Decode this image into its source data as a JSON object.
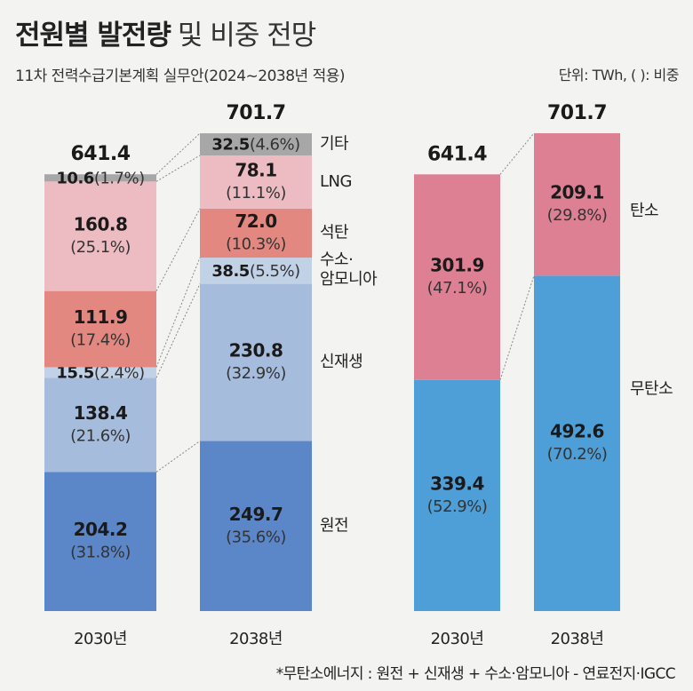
{
  "title": {
    "bold": "전원별 발전량",
    "light": "및 비중 전망"
  },
  "subtitle": "11차 전력수급기본계획 실무안(2024~2038년 적용)",
  "unit": "단위: TWh, ( ): 비중",
  "footnote": "*무탄소에너지 : 원전 + 신재생 + 수소·암모니아 - 연료전지·IGCC",
  "colors": {
    "nuclear": "#5b87c9",
    "renewable": "#a5bcdc",
    "hydrogen": "#c2d2e6",
    "coal": "#e28880",
    "lng": "#edbcc3",
    "other": "#a7a7a7",
    "carbon": "#de8094",
    "carbon_free": "#4e9ed8"
  },
  "chart_data": [
    {
      "type": "bar",
      "stacked": true,
      "categories": [
        "2030년",
        "2038년"
      ],
      "totals": [
        "641.4",
        "701.7"
      ],
      "series": [
        {
          "name": "원전",
          "values": [
            204.2,
            249.7
          ],
          "pct": [
            "(31.8%)",
            "(35.6%)"
          ],
          "color": "nuclear"
        },
        {
          "name": "신재생",
          "values": [
            138.4,
            230.8
          ],
          "pct": [
            "(21.6%)",
            "(32.9%)"
          ],
          "color": "renewable"
        },
        {
          "name": "수소·암모니아",
          "values": [
            15.5,
            38.5
          ],
          "pct": [
            "(2.4%)",
            "(5.5%)"
          ],
          "color": "hydrogen"
        },
        {
          "name": "석탄",
          "values": [
            111.9,
            72.0
          ],
          "pct": [
            "(17.4%)",
            "(10.3%)"
          ],
          "color": "coal"
        },
        {
          "name": "LNG",
          "values": [
            160.8,
            78.1
          ],
          "pct": [
            "(25.1%)",
            "(11.1%)"
          ],
          "color": "lng"
        },
        {
          "name": "기타",
          "values": [
            10.6,
            32.5
          ],
          "pct": [
            "(1.7%)",
            "(4.6%)"
          ],
          "color": "other"
        }
      ],
      "value_labels": [
        [
          "204.2",
          "249.7"
        ],
        [
          "138.4",
          "230.8"
        ],
        [
          "15.5",
          "38.5"
        ],
        [
          "111.9",
          "72.0"
        ],
        [
          "160.8",
          "78.1"
        ],
        [
          "10.6",
          "32.5"
        ]
      ],
      "legend": [
        "원전",
        "신재생",
        "수소·\n암모니아",
        "석탄",
        "LNG",
        "기타"
      ]
    },
    {
      "type": "bar",
      "stacked": true,
      "categories": [
        "2030년",
        "2038년"
      ],
      "totals": [
        "641.4",
        "701.7"
      ],
      "series": [
        {
          "name": "무탄소",
          "values": [
            339.4,
            492.6
          ],
          "pct": [
            "(52.9%)",
            "(70.2%)"
          ],
          "color": "carbon_free"
        },
        {
          "name": "탄소",
          "values": [
            301.9,
            209.1
          ],
          "pct": [
            "(47.1%)",
            "(29.8%)"
          ],
          "color": "carbon"
        }
      ],
      "value_labels": [
        [
          "339.4",
          "492.6"
        ],
        [
          "301.9",
          "209.1"
        ]
      ],
      "legend": [
        "무탄소",
        "탄소"
      ]
    }
  ]
}
